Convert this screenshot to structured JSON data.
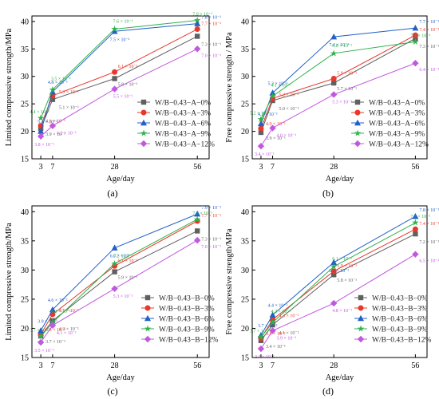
{
  "chart_data": [
    {
      "panel": "(a)",
      "type": "line",
      "xlabel": "Age/day",
      "ylabel": "Limited compressive strength/MPa",
      "x": [
        3,
        7,
        28,
        56
      ],
      "xticks": [
        "3",
        "7",
        "28",
        "56"
      ],
      "ylim": [
        15,
        41
      ],
      "yticks": [
        15,
        20,
        25,
        30,
        35,
        40
      ],
      "grid": false,
      "legend": "center-right",
      "series": [
        {
          "name": "W/B−0.43−A−0%",
          "color": "#606060",
          "marker": "square",
          "values": [
            20.5,
            25.8,
            29.6,
            37.3
          ],
          "labels": [
            "3.9 × 10⁻¹",
            "5.1 × 10⁻¹",
            "5.8 × 10⁻¹",
            "7.3 × 10⁻¹"
          ]
        },
        {
          "name": "W/B−0.43−A−3%",
          "color": "#e8382d",
          "marker": "circle",
          "values": [
            21.0,
            26.5,
            30.8,
            38.6
          ],
          "labels": [
            "4.1 × 10⁻¹",
            "5.3 × 10⁻¹",
            "6.1 × 10⁻¹",
            "7.7 × 10⁻¹"
          ]
        },
        {
          "name": "W/B−0.43−A−6%",
          "color": "#2060c8",
          "marker": "triangle",
          "values": [
            20.0,
            27.2,
            38.2,
            39.6
          ],
          "labels": [
            "5.4 × 10⁻¹",
            "4.8 × 10⁻¹",
            "7.5 × 10⁻¹",
            "7.8 × 10⁻¹"
          ]
        },
        {
          "name": "W/B−0.43−A−9%",
          "color": "#2fb24c",
          "marker": "star",
          "values": [
            22.4,
            27.6,
            38.6,
            40.2
          ],
          "labels": [
            "4.4 × 10⁻¹",
            "3.5 × 10⁻¹",
            "7.6 × 10⁻¹",
            "7.9 × 10⁻¹"
          ]
        },
        {
          "name": "W/B−0.43−A−12%",
          "color": "#c058e0",
          "marker": "diamond",
          "values": [
            19.1,
            21.0,
            27.7,
            35.0
          ],
          "labels": [
            "3.8 × 10⁻¹",
            "4.2 × 10⁻¹",
            "5.5 × 10⁻¹",
            "7.0 × 10⁻¹"
          ]
        }
      ]
    },
    {
      "panel": "(b)",
      "type": "line",
      "xlabel": "Age/day",
      "ylabel": "Free compressive strength / MPa",
      "x": [
        3,
        7,
        28,
        56
      ],
      "xticks": [
        "3",
        "7",
        "28",
        "56"
      ],
      "ylim": [
        15,
        41
      ],
      "yticks": [
        15,
        20,
        25,
        30,
        35,
        40
      ],
      "grid": false,
      "legend": "center-right",
      "series": [
        {
          "name": "W/B−0.43−A−0%",
          "color": "#606060",
          "marker": "square",
          "values": [
            19.8,
            25.6,
            28.8,
            36.9
          ],
          "labels": [
            "3.9 × 10⁻¹",
            "5.0 × 10⁻¹",
            "5.7 × 10⁻¹",
            "7.3 × 10⁻¹"
          ]
        },
        {
          "name": "W/B−0.43−A−3%",
          "color": "#e8382d",
          "marker": "circle",
          "values": [
            20.5,
            26.0,
            29.6,
            37.5
          ],
          "labels": [
            "4.0 × 10⁻¹",
            "5.2 × 10⁻¹",
            "5.9 × 10⁻¹",
            "7.4 × 10⁻¹"
          ]
        },
        {
          "name": "W/B−0.43−A−6%",
          "color": "#2060c8",
          "marker": "triangle",
          "values": [
            21.4,
            27.0,
            37.2,
            38.8
          ],
          "labels": [
            "4.2 × 10⁻¹",
            "5.3 × 10⁻¹",
            "7.4 × 10⁻¹",
            "7.7 × 10⁻¹"
          ]
        },
        {
          "name": "W/B−0.43−A−9%",
          "color": "#2fb24c",
          "marker": "star",
          "values": [
            22.2,
            26.4,
            34.2,
            36.3
          ],
          "labels": [
            "5.2 × 10⁻¹",
            "4.1 × 10⁻¹",
            "6.8 × 10⁻¹",
            "7.2 × 10⁻¹"
          ]
        },
        {
          "name": "W/B−0.43−A−12%",
          "color": "#c058e0",
          "marker": "diamond",
          "values": [
            17.3,
            20.6,
            26.7,
            32.4
          ],
          "labels": [
            "3.4 × 10⁻¹",
            "4.0 × 10⁻¹",
            "5.3 × 10⁻¹",
            "6.4 × 10⁻¹"
          ]
        }
      ]
    },
    {
      "panel": "(c)",
      "type": "line",
      "xlabel": "Age/day",
      "ylabel": "Limited compressive strength/MPa",
      "x": [
        3,
        7,
        28,
        56
      ],
      "xticks": [
        "3",
        "7",
        "28",
        "56"
      ],
      "ylim": [
        15,
        41
      ],
      "yticks": [
        15,
        20,
        25,
        30,
        35,
        40
      ],
      "grid": false,
      "legend": "bottom-right",
      "series": [
        {
          "name": "W/B−0.43−B−0%",
          "color": "#606060",
          "marker": "square",
          "values": [
            18.7,
            21.3,
            29.7,
            36.7
          ],
          "labels": [
            "3.7 × 10⁻¹",
            "4.2 × 10⁻¹",
            "5.9 × 10⁻¹",
            "7.3 × 10⁻¹"
          ]
        },
        {
          "name": "W/B−0.43−B−3%",
          "color": "#e8382d",
          "marker": "circle",
          "values": [
            19.0,
            22.4,
            30.7,
            38.4
          ],
          "labels": [
            "3.8 × 10⁻¹",
            "4.5 × 10⁻¹",
            "6.1 × 10⁻¹",
            "7.7 × 10⁻¹"
          ]
        },
        {
          "name": "W/B−0.43−B−6%",
          "color": "#2060c8",
          "marker": "triangle",
          "values": [
            19.6,
            23.2,
            33.8,
            39.6
          ],
          "labels": [
            "3.9 × 10⁻¹",
            "4.6 × 10⁻¹",
            "6.7 × 10⁻¹",
            "7.9 × 10⁻¹"
          ]
        },
        {
          "name": "W/B−0.43−B−9%",
          "color": "#2fb24c",
          "marker": "star",
          "values": [
            18.6,
            21.0,
            31.1,
            38.7
          ],
          "labels": [
            "3.7 × 10⁻¹",
            "4.2 × 10⁻¹",
            "6.2 × 10⁻¹",
            "7.7 × 10⁻¹"
          ]
        },
        {
          "name": "W/B−0.43−B−12%",
          "color": "#c058e0",
          "marker": "diamond",
          "values": [
            17.6,
            20.5,
            26.8,
            35.1
          ],
          "labels": [
            "3.5 × 10⁻¹",
            "4.1 × 10⁻¹",
            "5.3 × 10⁻¹",
            "7.0 × 10⁻¹"
          ]
        }
      ]
    },
    {
      "panel": "(d)",
      "type": "line",
      "xlabel": "Age/day",
      "ylabel": "Free compressive strength/MPa",
      "x": [
        3,
        7,
        28,
        56
      ],
      "xticks": [
        "3",
        "7",
        "28",
        "56"
      ],
      "ylim": [
        15,
        41
      ],
      "yticks": [
        15,
        20,
        25,
        30,
        35,
        40
      ],
      "grid": false,
      "legend": "bottom-right",
      "series": [
        {
          "name": "W/B−0.43−B−0%",
          "color": "#606060",
          "marker": "square",
          "values": [
            17.9,
            20.6,
            29.2,
            36.2
          ],
          "labels": [
            "3.4 × 10⁻¹",
            "4.1 × 10⁻¹",
            "5.8 × 10⁻¹",
            "7.2 × 10⁻¹"
          ]
        },
        {
          "name": "W/B−0.43−B−3%",
          "color": "#e8382d",
          "marker": "circle",
          "values": [
            18.3,
            21.5,
            29.8,
            37.0
          ],
          "labels": [
            "3.5 × 10⁻¹",
            "4.3 × 10⁻¹",
            "5.9 × 10⁻¹",
            "7.4 × 10⁻¹"
          ]
        },
        {
          "name": "W/B−0.43−B−6%",
          "color": "#2060c8",
          "marker": "triangle",
          "values": [
            18.8,
            22.3,
            31.3,
            39.2
          ],
          "labels": [
            "3.7 × 10⁻¹",
            "4.4 × 10⁻¹",
            "6.2 × 10⁻¹",
            "7.8 × 10⁻¹"
          ]
        },
        {
          "name": "W/B−0.43−B−9%",
          "color": "#2fb24c",
          "marker": "star",
          "values": [
            18.5,
            21.0,
            30.6,
            38.1
          ],
          "labels": [
            "3.7 × 10⁻¹",
            "4.2 × 10⁻¹",
            "6.1 × 10⁻¹",
            "7.7 × 10⁻¹"
          ]
        },
        {
          "name": "W/B−0.43−B−12%",
          "color": "#c058e0",
          "marker": "diamond",
          "values": [
            16.5,
            19.6,
            24.3,
            32.7
          ],
          "labels": [
            "2.3 × 10⁻¹",
            "3.9 × 10⁻¹",
            "4.8 × 10⁻¹",
            "6.5 × 10⁻¹"
          ]
        }
      ]
    }
  ]
}
